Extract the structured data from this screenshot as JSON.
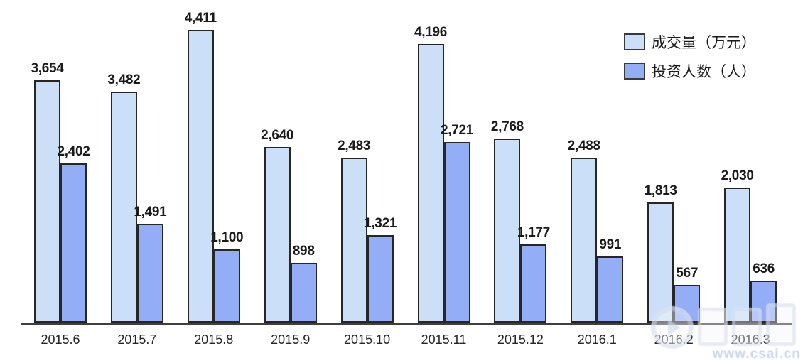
{
  "legend": {
    "items": [
      {
        "label": "成交量（万元）",
        "color": "#CBE0F8"
      },
      {
        "label": "投资人数（人）",
        "color": "#93ADF6"
      }
    ]
  },
  "colors": {
    "volume_fill": "#CBE0F8",
    "investors_fill": "#93ADF6",
    "bar_border": "#262626",
    "axis_line": "#3f3f3f",
    "value_label_text": "#1a1a1a",
    "x_label_text": "#262626",
    "watermark_text": "#c3cde6"
  },
  "chart_data": {
    "type": "bar",
    "categories": [
      "2015.6",
      "2015.7",
      "2015.8",
      "2015.9",
      "2015.10",
      "2015.11",
      "2015.12",
      "2016.1",
      "2016.2",
      "2016.3"
    ],
    "series": [
      {
        "name": "成交量（万元）",
        "values": [
          3654,
          3482,
          4411,
          2640,
          2483,
          4196,
          2768,
          2488,
          1813,
          2030
        ]
      },
      {
        "name": "投资人数（人）",
        "values": [
          2402,
          1491,
          1100,
          898,
          1321,
          2721,
          1177,
          991,
          567,
          636
        ]
      }
    ],
    "title": "",
    "xlabel": "",
    "ylabel": "",
    "ylim": [
      0,
      4860
    ],
    "grid": false,
    "legend_position": "top-right",
    "value_labels": true
  },
  "watermark": {
    "url_text": "www.csai.cn"
  }
}
